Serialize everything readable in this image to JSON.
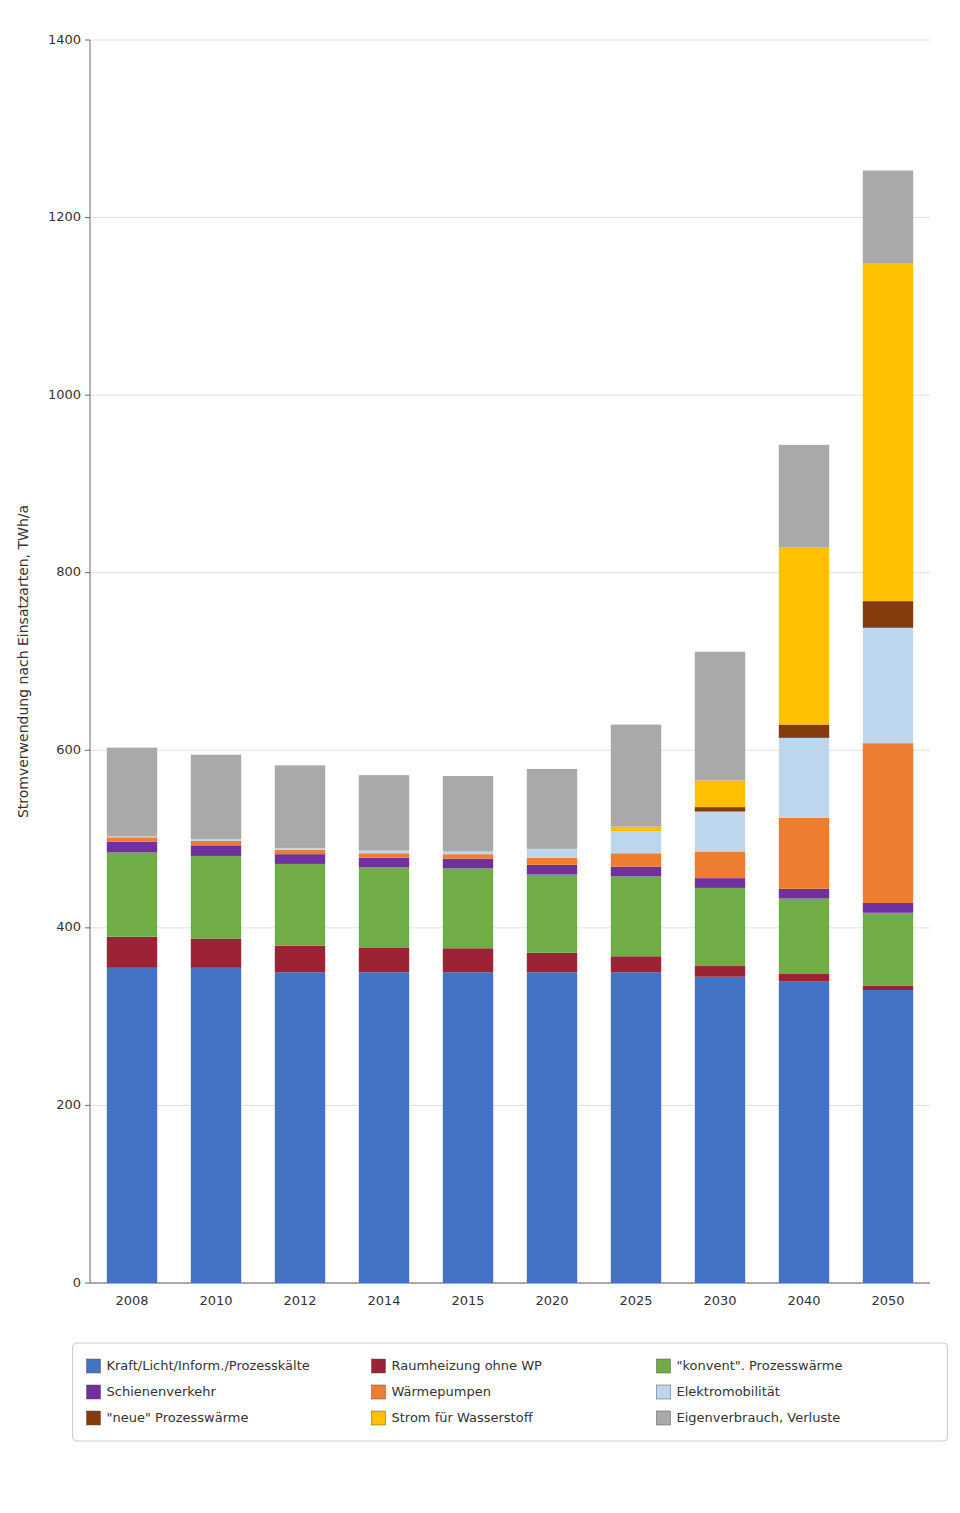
{
  "chart_data": {
    "type": "bar",
    "stacked": true,
    "categories": [
      "2008",
      "2010",
      "2012",
      "2014",
      "2015",
      "2020",
      "2025",
      "2030",
      "2040",
      "2050"
    ],
    "series": [
      {
        "name": "Kraft/Licht/Inform./Prozesskälte",
        "color": "#4472C4",
        "values": [
          355,
          355,
          350,
          350,
          350,
          350,
          350,
          345,
          340,
          330
        ]
      },
      {
        "name": "Raumheizung ohne WP",
        "color": "#9B2335",
        "values": [
          35,
          33,
          30,
          28,
          27,
          22,
          18,
          12,
          8,
          5
        ]
      },
      {
        "name": "\"konvent\". Prozesswärme",
        "color": "#70AD47",
        "values": [
          95,
          93,
          92,
          90,
          90,
          88,
          90,
          88,
          85,
          82
        ]
      },
      {
        "name": "Schienenverkehr",
        "color": "#7030A0",
        "values": [
          12,
          12,
          11,
          11,
          11,
          11,
          11,
          11,
          11,
          11
        ]
      },
      {
        "name": "Wärmepumpen",
        "color": "#ED7D31",
        "values": [
          5,
          5,
          5,
          5,
          5,
          8,
          15,
          30,
          80,
          180
        ]
      },
      {
        "name": "Elektromobilität",
        "color": "#BDD7EE",
        "values": [
          1,
          2,
          2,
          3,
          3,
          10,
          25,
          45,
          90,
          130
        ]
      },
      {
        "name": "\"neue\" Prozesswärme",
        "color": "#843C0C",
        "values": [
          0,
          0,
          0,
          0,
          0,
          0,
          0,
          5,
          15,
          30
        ]
      },
      {
        "name": "Strom für Wasserstoff",
        "color": "#FFC000",
        "values": [
          0,
          0,
          0,
          0,
          0,
          0,
          5,
          30,
          200,
          380
        ]
      },
      {
        "name": "Eigenverbrauch, Verluste",
        "color": "#A9A9A9",
        "values": [
          100,
          95,
          93,
          85,
          85,
          90,
          115,
          145,
          115,
          105
        ]
      }
    ],
    "ylabel": "Stromverwendung nach Einsatzarten, TWh/a",
    "ylim": [
      0,
      1400
    ],
    "yticks": [
      0,
      200,
      400,
      600,
      800,
      1000,
      1200,
      1400
    ],
    "grid": true,
    "legend": "bottom"
  }
}
